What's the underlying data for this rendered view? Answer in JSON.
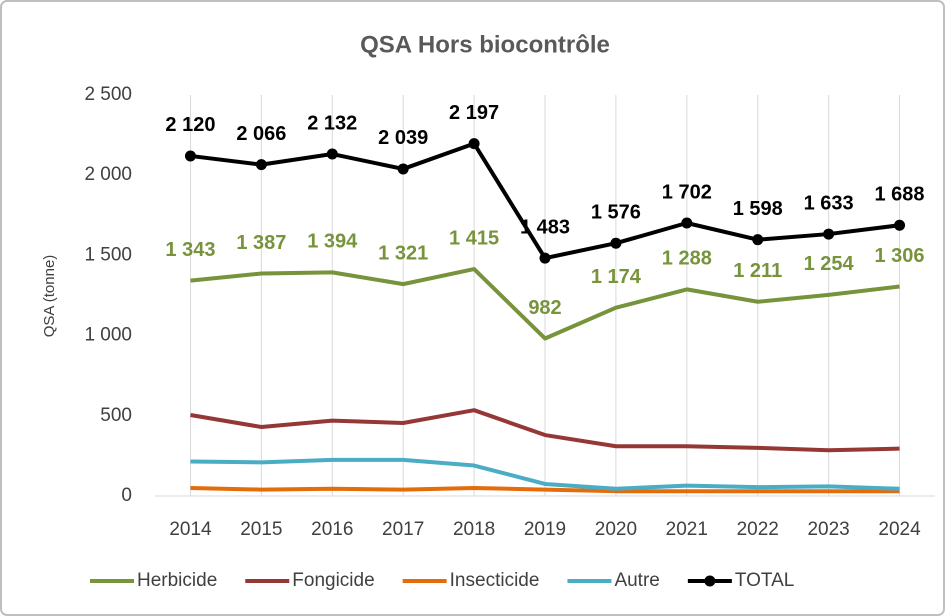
{
  "chart_data": {
    "type": "line",
    "title": "QSA Hors biocontrôle",
    "y_label": "QSA (tonne)",
    "categories": [
      "2014",
      "2015",
      "2016",
      "2017",
      "2018",
      "2019",
      "2020",
      "2021",
      "2022",
      "2023",
      "2024"
    ],
    "ylim": [
      0,
      2500
    ],
    "yticks": [
      0,
      500,
      {
        "value": 1000,
        "label": "1 000"
      },
      {
        "value": 1500,
        "label": "1 500"
      },
      {
        "value": 2000,
        "label": "2 000"
      },
      {
        "value": 2500,
        "label": "2 500"
      }
    ],
    "grid": true,
    "legend": "bottom",
    "series": [
      {
        "name": "Herbicide",
        "color": "#77933c",
        "values": [
          1343,
          1387,
          1394,
          1321,
          1415,
          982,
          1174,
          1288,
          1211,
          1254,
          1306
        ],
        "value_labels": [
          "1 343",
          "1 387",
          "1 394",
          "1 321",
          "1 415",
          "982",
          "1 174",
          "1 288",
          "1 211",
          "1 254",
          "1 306"
        ]
      },
      {
        "name": "Fongicide",
        "color": "#953735",
        "values": [
          505,
          430,
          470,
          455,
          535,
          380,
          310,
          310,
          300,
          285,
          295
        ]
      },
      {
        "name": "Insecticide",
        "color": "#e46c0a",
        "values": [
          50,
          40,
          45,
          40,
          50,
          40,
          30,
          30,
          30,
          30,
          30
        ]
      },
      {
        "name": "Autre",
        "color": "#4bacc6",
        "values": [
          215,
          210,
          225,
          225,
          190,
          75,
          45,
          65,
          55,
          60,
          45
        ]
      },
      {
        "name": "TOTAL",
        "color": "#000000",
        "markers": true,
        "values": [
          2120,
          2066,
          2132,
          2039,
          2197,
          1483,
          1576,
          1702,
          1598,
          1633,
          1688
        ],
        "value_labels": [
          "2 120",
          "2 066",
          "2 132",
          "2 039",
          "2 197",
          "1 483",
          "1 576",
          "1 702",
          "1 598",
          "1 633",
          "1 688"
        ]
      }
    ]
  }
}
